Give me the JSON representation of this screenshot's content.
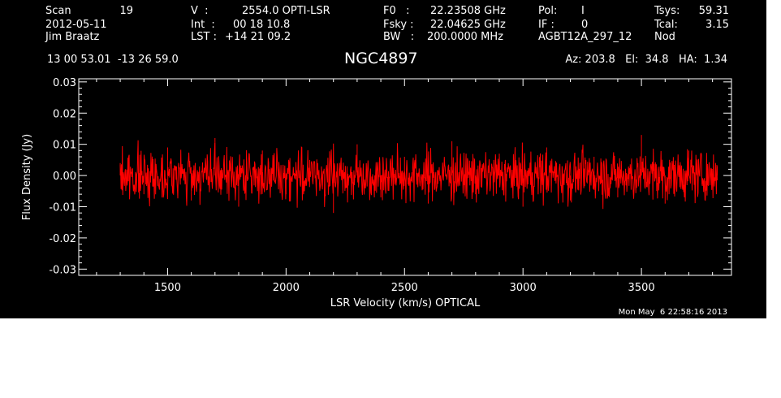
{
  "header": {
    "scan_label": "Scan",
    "scan_value": "19",
    "date": "2012-05-11",
    "observer": "Jim Braatz",
    "coords": "13 00 53.01  -13 26 59.0",
    "v_label": "V  :",
    "v_value": "2554.0 OPTI-LSR",
    "int_label": "Int  :",
    "int_value": "00 18 10.8",
    "lst_label": "LST :",
    "lst_value": "+14 21 09.2",
    "f0_label": "F0   :",
    "f0_value": "22.23508 GHz",
    "fsky_label": "Fsky :",
    "fsky_value": "22.04625 GHz",
    "bw_label": "BW   :",
    "bw_value": "200.0000 MHz",
    "pol_label": "Pol:",
    "pol_value": "I",
    "if_label": "IF :",
    "if_value": "0",
    "project": "AGBT12A_297_12",
    "tsys_label": "Tsys:",
    "tsys_value": "59.31",
    "tcal_label": "Tcal:",
    "tcal_value": "3.15",
    "nod": "Nod",
    "source": "NGC4897",
    "az_el_ha": "Az: 203.8   El:  34.8   HA:  1.34"
  },
  "footer": {
    "timestamp": "Mon May  6 22:58:16 2013"
  },
  "colors": {
    "background": "#000000",
    "axes": "#ffffff",
    "trace": "#ff0000"
  },
  "chart_data": {
    "type": "line",
    "xlabel": "LSR Velocity (km/s) OPTICAL",
    "ylabel": "Flux Density (Jy)",
    "xlim": [
      1125,
      3880
    ],
    "ylim": [
      -0.032,
      0.031
    ],
    "xticks": [
      1500,
      2000,
      2500,
      3000,
      3500
    ],
    "xtick_labels": [
      "1500",
      "2000",
      "2500",
      "3000",
      "3500"
    ],
    "yticks": [
      0.03,
      0.02,
      0.01,
      0.0,
      -0.01,
      -0.02,
      -0.03
    ],
    "ytick_labels": [
      "0.03",
      "0.02",
      "0.01",
      "0.00",
      "-0.01",
      "-0.02",
      "-0.03"
    ],
    "grid": false,
    "series": [
      {
        "x": [
          1300,
          1400,
          1500,
          1600,
          1700,
          1800,
          1900,
          2000,
          2100,
          2200,
          2300,
          2400,
          2500,
          2600,
          2700,
          2800,
          2900,
          3000,
          3100,
          3200,
          3300,
          3400,
          3500,
          3600,
          3700,
          3820
        ],
        "y": [
          0.004,
          -0.006,
          0.009,
          -0.008,
          0.012,
          -0.01,
          0.008,
          -0.006,
          0.005,
          -0.012,
          0.01,
          -0.007,
          0.006,
          -0.009,
          0.011,
          -0.006,
          0.007,
          -0.01,
          0.009,
          -0.008,
          0.006,
          -0.007,
          0.013,
          -0.009,
          0.008,
          0.003
        ]
      }
    ]
  }
}
